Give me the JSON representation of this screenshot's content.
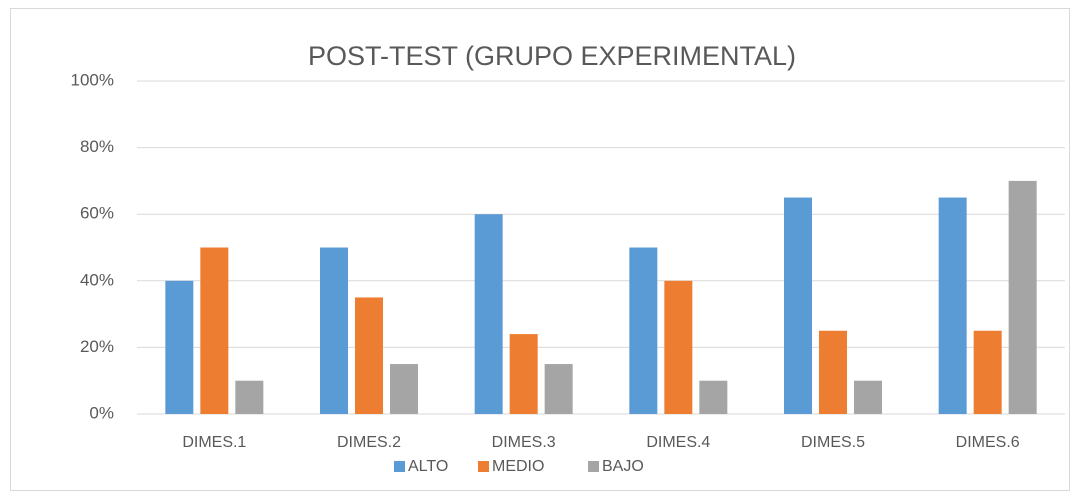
{
  "chart_data": {
    "type": "bar",
    "title": "POST-TEST (GRUPO EXPERIMENTAL)",
    "categories": [
      "DIMES.1",
      "DIMES.2",
      "DIMES.3",
      "DIMES.4",
      "DIMES.5",
      "DIMES.6"
    ],
    "series": [
      {
        "name": "ALTO",
        "color": "#5b9bd5",
        "values": [
          40,
          50,
          60,
          50,
          65,
          65
        ]
      },
      {
        "name": "MEDIO",
        "color": "#ed7d31",
        "values": [
          50,
          35,
          24,
          40,
          25,
          25
        ]
      },
      {
        "name": "BAJO",
        "color": "#a5a5a5",
        "values": [
          10,
          15,
          15,
          10,
          10,
          70
        ]
      }
    ],
    "ylim": [
      0,
      100
    ],
    "yticks": [
      {
        "value": 0,
        "label": "0%"
      },
      {
        "value": 20,
        "label": "20%"
      },
      {
        "value": 40,
        "label": "40%"
      },
      {
        "value": 60,
        "label": "60%"
      },
      {
        "value": 80,
        "label": "80%"
      },
      {
        "value": 100,
        "label": "100%"
      }
    ],
    "grid": true,
    "legend": "bottom"
  }
}
